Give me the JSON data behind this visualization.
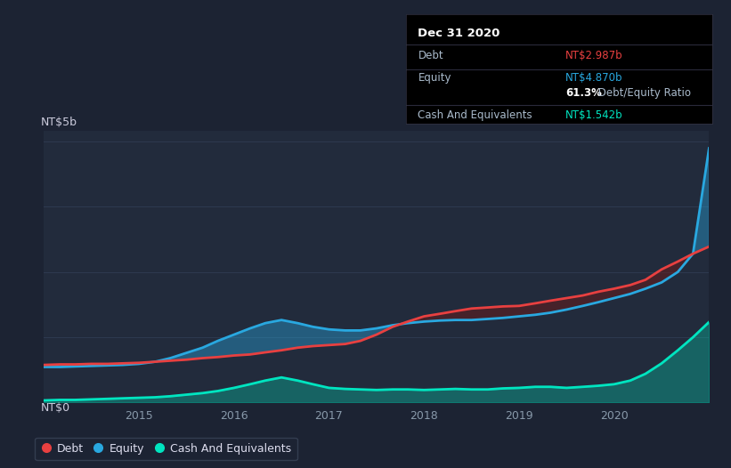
{
  "bg_color": "#1c2333",
  "plot_bg_color": "#222b3c",
  "grid_color": "#2e3a50",
  "title_text": "Dec 31 2020",
  "debt_label": "Debt",
  "equity_label": "Equity",
  "cash_label": "Cash And Equivalents",
  "debt_color": "#e84040",
  "equity_color": "#29a8e0",
  "cash_color": "#00e5c0",
  "debt_value": "NT$2.987b",
  "equity_value": "NT$4.870b",
  "ratio_bold": "61.3%",
  "ratio_rest": " Debt/Equity Ratio",
  "cash_value": "NT$1.542b",
  "ylim_label_top": "NT$5b",
  "ylim_label_bottom": "NT$0",
  "years": [
    2014.0,
    2014.17,
    2014.33,
    2014.5,
    2014.67,
    2014.83,
    2015.0,
    2015.17,
    2015.33,
    2015.5,
    2015.67,
    2015.83,
    2016.0,
    2016.17,
    2016.33,
    2016.5,
    2016.67,
    2016.83,
    2017.0,
    2017.17,
    2017.33,
    2017.5,
    2017.67,
    2017.83,
    2018.0,
    2018.17,
    2018.33,
    2018.5,
    2018.67,
    2018.83,
    2019.0,
    2019.17,
    2019.33,
    2019.5,
    2019.67,
    2019.83,
    2020.0,
    2020.17,
    2020.33,
    2020.5,
    2020.67,
    2020.83,
    2020.999
  ],
  "debt": [
    0.72,
    0.73,
    0.73,
    0.74,
    0.74,
    0.75,
    0.76,
    0.78,
    0.8,
    0.82,
    0.85,
    0.87,
    0.9,
    0.92,
    0.96,
    1.0,
    1.05,
    1.08,
    1.1,
    1.12,
    1.18,
    1.3,
    1.45,
    1.55,
    1.65,
    1.7,
    1.75,
    1.8,
    1.82,
    1.84,
    1.85,
    1.9,
    1.95,
    2.0,
    2.05,
    2.12,
    2.18,
    2.25,
    2.35,
    2.55,
    2.7,
    2.85,
    2.987
  ],
  "equity": [
    0.68,
    0.68,
    0.69,
    0.7,
    0.71,
    0.72,
    0.74,
    0.78,
    0.85,
    0.95,
    1.05,
    1.18,
    1.3,
    1.42,
    1.52,
    1.58,
    1.52,
    1.45,
    1.4,
    1.38,
    1.38,
    1.42,
    1.48,
    1.52,
    1.55,
    1.57,
    1.58,
    1.58,
    1.6,
    1.62,
    1.65,
    1.68,
    1.72,
    1.78,
    1.85,
    1.92,
    2.0,
    2.08,
    2.18,
    2.3,
    2.5,
    2.85,
    4.87
  ],
  "cash": [
    0.04,
    0.05,
    0.05,
    0.06,
    0.07,
    0.08,
    0.09,
    0.1,
    0.12,
    0.15,
    0.18,
    0.22,
    0.28,
    0.35,
    0.42,
    0.48,
    0.42,
    0.35,
    0.28,
    0.26,
    0.25,
    0.24,
    0.25,
    0.25,
    0.24,
    0.25,
    0.26,
    0.25,
    0.25,
    0.27,
    0.28,
    0.3,
    0.3,
    0.28,
    0.3,
    0.32,
    0.35,
    0.42,
    0.55,
    0.75,
    1.0,
    1.25,
    1.542
  ]
}
